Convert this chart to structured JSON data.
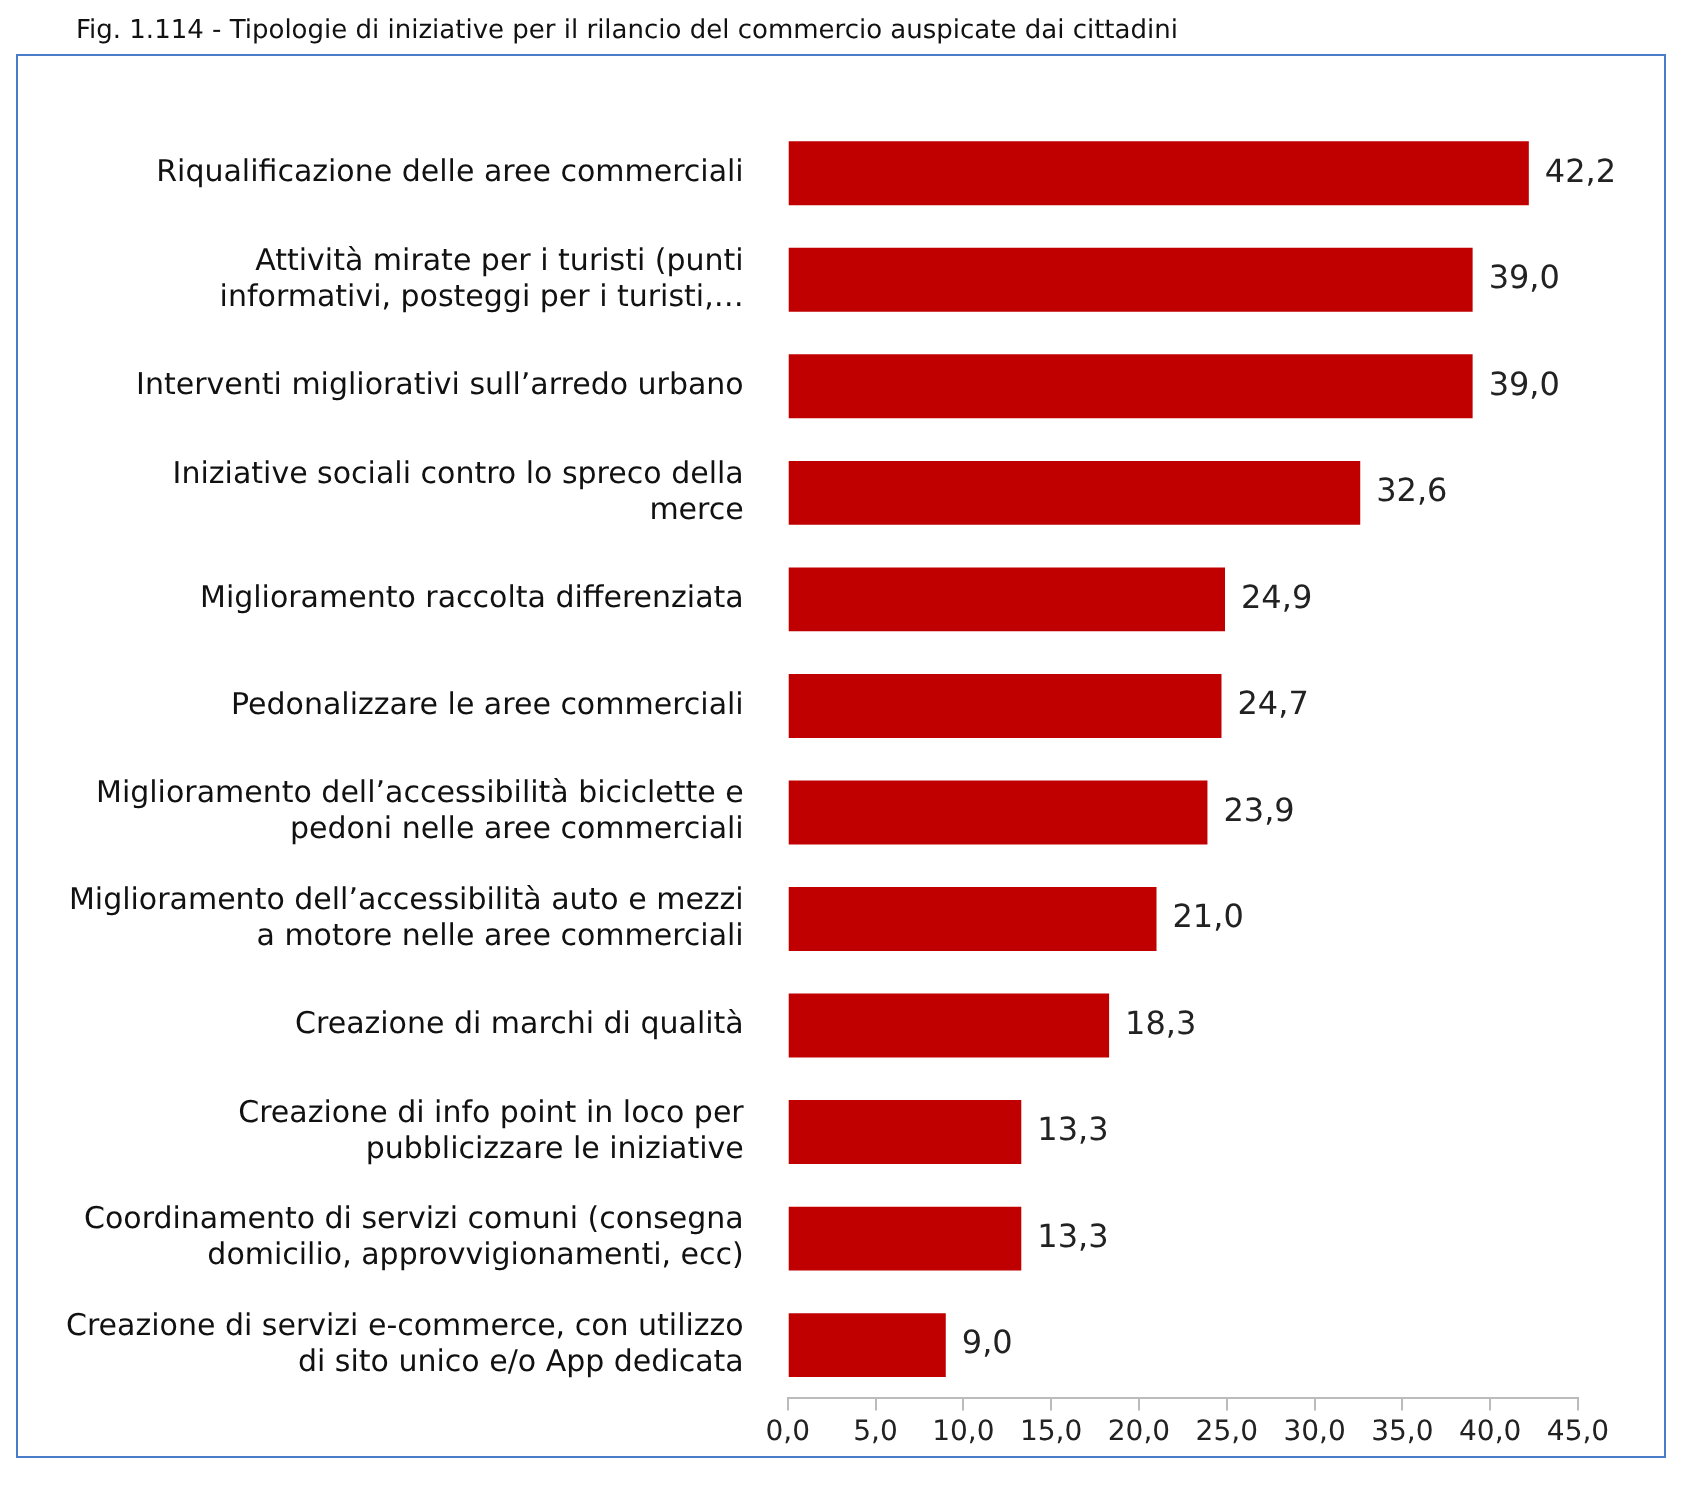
{
  "chart_data": {
    "type": "bar",
    "orientation": "horizontal",
    "title": "Fig. 1.114 - Tipologie di iniziative per il rilancio del commercio auspicate dai cittadini",
    "categories": [
      "Riqualificazione delle aree commerciali",
      "Attività mirate per i turisti (punti informativi, posteggi per i turisti,…",
      "Interventi migliorativi sull’arredo urbano",
      "Iniziative sociali contro lo spreco della merce",
      "Miglioramento raccolta differenziata",
      "Pedonalizzare le aree commerciali",
      "Miglioramento dell’accessibilità biciclette e pedoni nelle aree commerciali",
      "Miglioramento dell’accessibilità auto e mezzi a motore nelle aree commerciali",
      "Creazione di marchi di qualità",
      "Creazione di info point in loco per pubblicizzare le iniziative",
      "Coordinamento di servizi comuni (consegna domicilio, approvvigionamenti, ecc)",
      "Creazione di servizi e-commerce, con utilizzo di sito unico e/o App dedicata"
    ],
    "values": [
      42.2,
      39.0,
      39.0,
      32.6,
      24.9,
      24.7,
      23.9,
      21.0,
      18.3,
      13.3,
      13.3,
      9.0
    ],
    "value_labels": [
      "42,2",
      "39,0",
      "39,0",
      "32,6",
      "24,9",
      "24,7",
      "23,9",
      "21,0",
      "18,3",
      "13,3",
      "13,3",
      "9,0"
    ],
    "color": "#c00000",
    "xlim": [
      0,
      45
    ],
    "xticks": [
      {
        "value": 0,
        "label": "0,0"
      },
      {
        "value": 5,
        "label": "5,0"
      },
      {
        "value": 10,
        "label": "10,0"
      },
      {
        "value": 15,
        "label": "15,0"
      },
      {
        "value": 20,
        "label": "20,0"
      },
      {
        "value": 25,
        "label": "25,0"
      },
      {
        "value": 30,
        "label": "30,0"
      },
      {
        "value": 35,
        "label": "35,0"
      },
      {
        "value": 40,
        "label": "40,0"
      },
      {
        "value": 45,
        "label": "45,0"
      }
    ],
    "grid": false,
    "legend": false
  }
}
